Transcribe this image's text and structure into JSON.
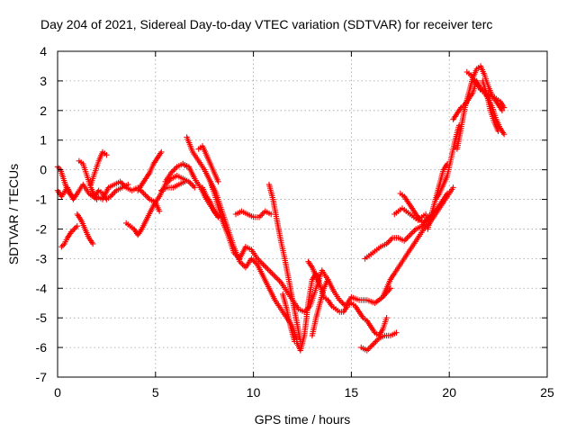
{
  "chart_data": {
    "type": "scatter",
    "title": "Day 204 of 2021, Sidereal Day-to-day VTEC variation (SDTVAR) for receiver terc",
    "xlabel": "GPS time / hours",
    "ylabel": "SDTVAR / TECUs",
    "xlim": [
      0,
      25
    ],
    "ylim": [
      -7,
      4
    ],
    "xticks": [
      "0",
      "5",
      "10",
      "15",
      "20",
      "25"
    ],
    "yticks": [
      "-7",
      "-6",
      "-5",
      "-4",
      "-3",
      "-2",
      "-1",
      "0",
      "1",
      "2",
      "3",
      "4"
    ],
    "grid": true,
    "marker": "+",
    "color": "#ff0000",
    "series": [
      {
        "x": [
          0.0,
          0.2,
          0.5,
          0.8,
          1.0,
          1.3,
          1.6,
          2.0
        ],
        "y": [
          -0.7,
          -0.9,
          -0.6,
          -1.0,
          -0.8,
          -0.5,
          -0.8,
          -1.0
        ]
      },
      {
        "x": [
          0.0,
          0.15,
          0.3,
          0.45,
          0.6,
          0.75
        ],
        "y": [
          0.1,
          0.0,
          -0.3,
          -0.6,
          -0.8,
          -0.9
        ]
      },
      {
        "x": [
          0.2,
          0.35,
          0.5,
          0.7,
          0.85,
          1.0
        ],
        "y": [
          -2.6,
          -2.5,
          -2.3,
          -2.1,
          -2.0,
          -1.9
        ]
      },
      {
        "x": [
          1.0,
          1.2,
          1.4,
          1.6,
          1.8
        ],
        "y": [
          -1.5,
          -1.7,
          -2.0,
          -2.3,
          -2.5
        ]
      },
      {
        "x": [
          1.1,
          1.3,
          1.5,
          1.7,
          1.9,
          2.1,
          2.3,
          2.5,
          2.7,
          3.0,
          3.3,
          3.6
        ],
        "y": [
          0.3,
          0.2,
          -0.2,
          -0.6,
          -0.9,
          -0.7,
          -0.8,
          -1.0,
          -0.9,
          -0.7,
          -0.6,
          -0.5
        ]
      },
      {
        "x": [
          1.7,
          1.9,
          2.1,
          2.3,
          2.5
        ],
        "y": [
          -0.5,
          -0.1,
          0.3,
          0.6,
          0.5
        ]
      },
      {
        "x": [
          2.0,
          2.3,
          2.6,
          2.9,
          3.2,
          3.5,
          3.8,
          4.1,
          4.4,
          4.7,
          5.0,
          5.2
        ],
        "y": [
          -0.9,
          -1.0,
          -0.6,
          -0.5,
          -0.4,
          -0.6,
          -0.7,
          -0.6,
          -0.8,
          -1.0,
          -1.1,
          -1.4
        ]
      },
      {
        "x": [
          3.5,
          3.7,
          3.9,
          4.1,
          4.3,
          4.6,
          4.9,
          5.2,
          5.5,
          5.8,
          6.1,
          6.4,
          6.7,
          7.0
        ],
        "y": [
          -1.8,
          -1.9,
          -2.0,
          -2.2,
          -2.0,
          -1.6,
          -1.2,
          -0.9,
          -0.5,
          -0.3,
          -0.2,
          -0.3,
          -0.4,
          -0.6
        ]
      },
      {
        "x": [
          4.1,
          4.3,
          4.5,
          4.7,
          4.9,
          5.1,
          5.3
        ],
        "y": [
          -0.7,
          -0.5,
          -0.3,
          -0.1,
          0.2,
          0.4,
          0.6
        ]
      },
      {
        "x": [
          5.3,
          5.6,
          5.9,
          6.2,
          6.5
        ],
        "y": [
          -0.7,
          -0.6,
          -0.6,
          -0.5,
          -0.4
        ]
      },
      {
        "x": [
          5.5,
          5.8,
          6.1,
          6.4,
          6.6
        ],
        "y": [
          -0.4,
          -0.1,
          0.1,
          0.2,
          0.1
        ]
      },
      {
        "x": [
          6.4,
          6.7,
          7.0,
          7.3,
          7.6,
          7.9,
          8.2
        ],
        "y": [
          0.2,
          0.1,
          -0.3,
          -0.6,
          -1.0,
          -1.3,
          -1.6
        ]
      },
      {
        "x": [
          6.6,
          6.9,
          7.2,
          7.5,
          7.8,
          8.1,
          8.4,
          8.7,
          9.0,
          9.3,
          9.6,
          9.9,
          10.2,
          10.5,
          10.8,
          11.1,
          11.4,
          11.7,
          12.0,
          12.3,
          12.6,
          12.9,
          13.2,
          13.5,
          13.8,
          14.1,
          14.4,
          14.7,
          15.0,
          15.4,
          15.8,
          16.2,
          16.6,
          17.0
        ],
        "y": [
          1.1,
          0.6,
          0.3,
          0.0,
          -0.4,
          -1.0,
          -1.7,
          -2.2,
          -2.8,
          -3.0,
          -2.6,
          -2.7,
          -3.0,
          -3.2,
          -3.4,
          -3.6,
          -3.8,
          -4.1,
          -4.4,
          -4.7,
          -4.8,
          -4.6,
          -4.0,
          -3.4,
          -3.7,
          -4.1,
          -4.4,
          -4.6,
          -4.3,
          -4.4,
          -4.4,
          -4.5,
          -4.3,
          -4.0
        ]
      },
      {
        "x": [
          7.2,
          7.4,
          7.6,
          7.8,
          8.0,
          8.2
        ],
        "y": [
          0.7,
          0.8,
          0.5,
          0.2,
          -0.1,
          -0.4
        ]
      },
      {
        "x": [
          7.4,
          7.6,
          7.8,
          8.0,
          8.2
        ],
        "y": [
          -0.6,
          -0.9,
          -1.1,
          -1.4,
          -1.6
        ]
      },
      {
        "x": [
          7.8,
          8.1,
          8.4,
          8.7,
          9.0,
          9.3,
          9.6,
          9.9,
          10.2,
          10.5,
          10.8,
          11.1,
          11.4,
          11.7,
          12.0,
          12.2
        ],
        "y": [
          -0.4,
          -0.8,
          -1.4,
          -2.0,
          -2.6,
          -3.1,
          -3.3,
          -3.0,
          -3.2,
          -3.6,
          -4.0,
          -4.4,
          -4.7,
          -5.0,
          -5.3,
          -5.7
        ]
      },
      {
        "x": [
          9.1,
          9.4,
          9.7,
          10.0,
          10.3,
          10.6,
          10.9
        ],
        "y": [
          -1.5,
          -1.4,
          -1.5,
          -1.6,
          -1.6,
          -1.4,
          -1.5
        ]
      },
      {
        "x": [
          10.8,
          11.0,
          11.2,
          11.4,
          11.6,
          11.8,
          12.0,
          12.2,
          12.4
        ],
        "y": [
          -0.5,
          -1.0,
          -1.7,
          -2.4,
          -3.0,
          -3.7,
          -4.4,
          -5.1,
          -5.8
        ]
      },
      {
        "x": [
          11.5,
          11.7,
          11.9,
          12.1
        ],
        "y": [
          -4.2,
          -4.7,
          -5.3,
          -5.8
        ]
      },
      {
        "x": [
          12.2,
          12.4,
          12.6,
          12.8,
          13.0,
          13.2,
          13.4,
          13.6,
          13.8,
          14.0,
          14.2,
          14.4,
          14.6,
          14.8,
          15.0,
          15.2,
          15.4,
          15.6,
          15.8,
          16.0,
          16.2,
          16.4,
          16.6,
          16.8
        ],
        "y": [
          -5.8,
          -6.1,
          -5.6,
          -4.5,
          -3.7,
          -3.5,
          -3.9,
          -4.3,
          -4.4,
          -4.6,
          -4.7,
          -4.8,
          -4.8,
          -4.6,
          -4.5,
          -4.6,
          -4.8,
          -5.0,
          -5.1,
          -5.3,
          -5.5,
          -5.6,
          -5.4,
          -5.0
        ]
      },
      {
        "x": [
          12.8,
          13.0,
          13.2,
          13.4
        ],
        "y": [
          -3.1,
          -3.3,
          -3.6,
          -3.9
        ]
      },
      {
        "x": [
          13.0,
          13.2,
          13.4,
          13.6,
          13.8
        ],
        "y": [
          -5.6,
          -5.0,
          -4.5,
          -4.0,
          -3.7
        ]
      },
      {
        "x": [
          15.5,
          15.8,
          16.1,
          16.4,
          16.7,
          17.0,
          17.3
        ],
        "y": [
          -6.0,
          -6.1,
          -5.9,
          -5.7,
          -5.6,
          -5.6,
          -5.5
        ]
      },
      {
        "x": [
          15.7,
          15.9,
          16.1,
          16.3,
          16.5,
          16.8,
          17.1,
          17.4,
          17.7,
          18.0,
          18.3,
          18.6,
          18.9,
          19.2
        ],
        "y": [
          -3.0,
          -2.9,
          -2.8,
          -2.7,
          -2.6,
          -2.5,
          -2.3,
          -2.3,
          -2.4,
          -2.2,
          -2.0,
          -1.9,
          -1.7,
          -1.5
        ]
      },
      {
        "x": [
          16.6,
          16.8,
          17.0,
          17.2,
          17.5,
          17.8,
          18.1,
          18.4,
          18.7,
          19.0,
          19.3,
          19.6,
          19.9,
          20.2
        ],
        "y": [
          -4.3,
          -4.0,
          -3.7,
          -3.5,
          -3.2,
          -2.9,
          -2.6,
          -2.3,
          -2.0,
          -1.8,
          -1.5,
          -1.2,
          -0.9,
          -0.6
        ]
      },
      {
        "x": [
          17.2,
          17.4,
          17.6,
          17.8,
          18.0,
          18.2,
          18.4,
          18.6,
          18.8
        ],
        "y": [
          -1.5,
          -1.4,
          -1.3,
          -1.4,
          -1.5,
          -1.6,
          -1.7,
          -1.6,
          -1.5
        ]
      },
      {
        "x": [
          17.5,
          17.7,
          17.9,
          18.1,
          18.3,
          18.5,
          18.7,
          18.9,
          19.1,
          19.3,
          19.5,
          19.7,
          19.9
        ],
        "y": [
          -0.8,
          -0.9,
          -1.1,
          -1.3,
          -1.5,
          -1.7,
          -1.8,
          -1.6,
          -1.5,
          -1.4,
          -1.2,
          -1.0,
          -0.8
        ]
      },
      {
        "x": [
          18.9,
          19.1,
          19.3,
          19.5,
          19.7,
          19.9
        ],
        "y": [
          -2.0,
          -1.5,
          -1.0,
          -0.5,
          0.0,
          0.2
        ]
      },
      {
        "x": [
          19.3,
          19.5,
          19.7,
          19.9,
          20.1,
          20.3,
          20.5
        ],
        "y": [
          -1.0,
          -0.8,
          -0.5,
          -0.2,
          0.4,
          1.0,
          1.5
        ]
      },
      {
        "x": [
          20.2,
          20.4,
          20.6,
          20.8,
          21.0,
          21.2,
          21.4,
          21.6,
          21.8,
          22.0,
          22.2,
          22.4,
          22.6,
          22.8
        ],
        "y": [
          1.7,
          1.9,
          2.1,
          2.2,
          2.4,
          2.6,
          3.0,
          2.7,
          2.6,
          2.4,
          2.1,
          1.7,
          1.4,
          1.2
        ]
      },
      {
        "x": [
          20.4,
          20.6,
          20.8,
          21.0,
          21.2,
          21.4,
          21.6,
          21.8,
          22.0,
          22.2,
          22.4,
          22.6,
          22.8
        ],
        "y": [
          0.7,
          1.4,
          2.1,
          2.6,
          3.1,
          3.4,
          3.5,
          3.2,
          2.8,
          2.5,
          2.4,
          2.3,
          2.1
        ]
      },
      {
        "x": [
          20.9,
          21.1,
          21.3,
          21.5,
          21.7,
          21.9,
          22.1,
          22.3,
          22.5,
          22.7
        ],
        "y": [
          3.3,
          3.2,
          3.0,
          2.8,
          2.7,
          2.6,
          2.5,
          2.4,
          2.2,
          2.0
        ]
      },
      {
        "x": [
          21.7,
          21.9,
          22.1,
          22.3,
          22.5
        ],
        "y": [
          3.0,
          2.6,
          2.0,
          1.6,
          1.3
        ]
      }
    ]
  }
}
